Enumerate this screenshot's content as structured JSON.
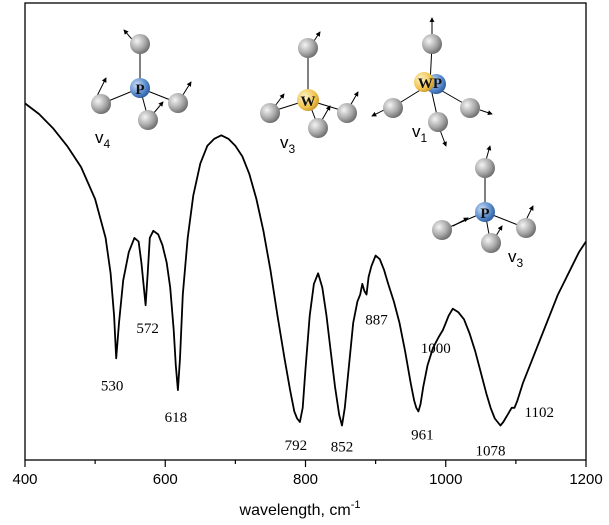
{
  "chart_data": {
    "type": "line",
    "title": "",
    "xlabel": "wavelength, cm",
    "xlabel_superscript": "-1",
    "ylabel": "",
    "xlim": [
      400,
      1200
    ],
    "x_ticks": [
      400,
      600,
      800,
      1000,
      1200
    ],
    "x_tick_labels": [
      "400",
      "600",
      "800",
      "1000",
      "1200"
    ],
    "x_minor_step": 100,
    "grid": false,
    "series": [
      {
        "color": "#000000",
        "x": [
          400,
          420,
          440,
          460,
          480,
          500,
          515,
          522,
          527,
          530,
          534,
          540,
          548,
          556,
          562,
          566,
          569,
          572,
          575,
          578,
          583,
          590,
          596,
          602,
          607,
          612,
          615,
          618,
          621,
          625,
          632,
          640,
          650,
          660,
          670,
          680,
          690,
          700,
          710,
          720,
          730,
          740,
          750,
          760,
          770,
          778,
          784,
          788,
          792,
          796,
          800,
          806,
          812,
          818,
          824,
          830,
          836,
          842,
          848,
          852,
          856,
          862,
          868,
          874,
          878,
          881,
          884,
          887,
          890,
          894,
          900,
          906,
          912,
          918,
          926,
          934,
          942,
          950,
          955,
          958,
          961,
          964,
          968,
          974,
          982,
          990,
          996,
          1000,
          1004,
          1010,
          1018,
          1026,
          1034,
          1042,
          1050,
          1058,
          1064,
          1070,
          1074,
          1078,
          1082,
          1088,
          1094,
          1098,
          1102,
          1110,
          1120,
          1130,
          1140,
          1150,
          1160,
          1170,
          1180,
          1190,
          1200
        ],
        "y": [
          0.1,
          0.13,
          0.17,
          0.22,
          0.28,
          0.37,
          0.48,
          0.58,
          0.7,
          0.82,
          0.72,
          0.6,
          0.52,
          0.48,
          0.49,
          0.55,
          0.61,
          0.67,
          0.58,
          0.48,
          0.46,
          0.47,
          0.5,
          0.55,
          0.62,
          0.74,
          0.84,
          0.91,
          0.82,
          0.64,
          0.48,
          0.36,
          0.27,
          0.22,
          0.2,
          0.19,
          0.2,
          0.22,
          0.25,
          0.3,
          0.37,
          0.46,
          0.57,
          0.7,
          0.82,
          0.91,
          0.97,
          0.99,
          1.0,
          0.96,
          0.85,
          0.7,
          0.61,
          0.58,
          0.62,
          0.7,
          0.8,
          0.9,
          0.98,
          1.01,
          0.96,
          0.84,
          0.72,
          0.66,
          0.64,
          0.61,
          0.63,
          0.64,
          0.59,
          0.56,
          0.53,
          0.54,
          0.57,
          0.61,
          0.66,
          0.72,
          0.8,
          0.89,
          0.94,
          0.96,
          0.97,
          0.95,
          0.9,
          0.84,
          0.79,
          0.76,
          0.74,
          0.72,
          0.7,
          0.68,
          0.69,
          0.71,
          0.75,
          0.8,
          0.86,
          0.92,
          0.96,
          0.99,
          1.0,
          1.01,
          1.0,
          0.98,
          0.96,
          0.96,
          0.94,
          0.89,
          0.84,
          0.79,
          0.74,
          0.69,
          0.64,
          0.6,
          0.56,
          0.52,
          0.49
        ]
      }
    ],
    "peak_labels": [
      {
        "text": "530",
        "x": 530,
        "y": 0.82
      },
      {
        "text": "572",
        "x": 572,
        "y": 0.67
      },
      {
        "text": "618",
        "x": 618,
        "y": 0.91
      },
      {
        "text": "792",
        "x": 792,
        "y": 1.0
      },
      {
        "text": "852",
        "x": 852,
        "y": 1.01
      },
      {
        "text": "887",
        "x": 887,
        "y": 0.64
      },
      {
        "text": "961",
        "x": 961,
        "y": 0.97
      },
      {
        "text": "1000",
        "x": 1000,
        "y": 0.72
      },
      {
        "text": "1078",
        "x": 1078,
        "y": 1.01
      },
      {
        "text": "1102",
        "x": 1102,
        "y": 0.94
      }
    ],
    "mode_insets": [
      {
        "label": "v",
        "sub": "4",
        "center_atom": "P",
        "center_color": "#4f83c8"
      },
      {
        "label": "v",
        "sub": "3",
        "center_atom": "W",
        "center_color": "#f0c34a"
      },
      {
        "label": "v",
        "sub": "1",
        "center_atom": "WP",
        "center_color": "#f0c34a"
      },
      {
        "label": "v",
        "sub": "3",
        "center_atom": "P",
        "center_color": "#4f83c8"
      }
    ]
  }
}
